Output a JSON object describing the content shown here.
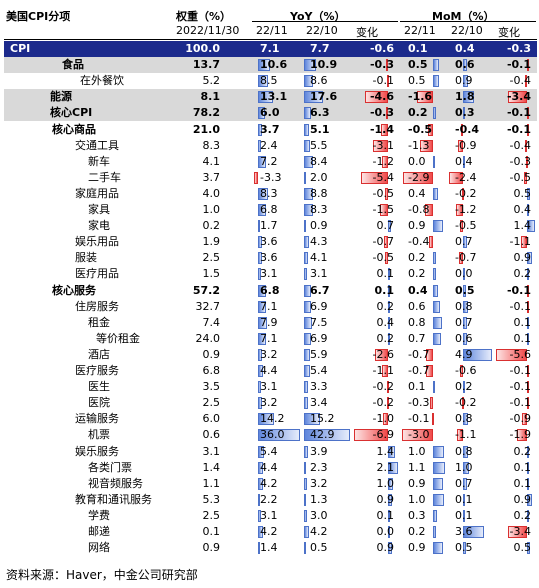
{
  "header": {
    "title": "美国CPI分项",
    "weight_label": "权重（%）",
    "weight_date": "2022/11/30",
    "yoy_label": "YoY（%）",
    "mom_label": "MoM（%）",
    "subcolumns": [
      "22/11",
      "22/10",
      "变化",
      "22/11",
      "22/10",
      "变化"
    ]
  },
  "table": {
    "rows": [
      [
        "CPI",
        "100.0",
        "7.1",
        "7.7",
        "-0.6",
        "0.1",
        "0.4",
        "-0.3"
      ],
      [
        "食品",
        "13.7",
        "10.6",
        "10.9",
        "-0.3",
        "0.5",
        "0.6",
        "-0.1"
      ],
      [
        "在外餐饮",
        "5.2",
        "8.5",
        "8.6",
        "-0.1",
        "0.5",
        "0.9",
        "-0.4"
      ],
      [
        "能源",
        "8.1",
        "13.1",
        "17.6",
        "-4.6",
        "-1.6",
        "1.8",
        "-3.4"
      ],
      [
        "核心CPI",
        "78.2",
        "6.0",
        "6.3",
        "-0.3",
        "0.2",
        "0.3",
        "-0.1"
      ],
      [
        "核心商品",
        "21.0",
        "3.7",
        "5.1",
        "-1.4",
        "-0.5",
        "-0.4",
        "-0.1"
      ],
      [
        "交通工具",
        "8.3",
        "2.4",
        "5.5",
        "-3.1",
        "-1.3",
        "-0.9",
        "-0.4"
      ],
      [
        "新车",
        "4.1",
        "7.2",
        "8.4",
        "-1.2",
        "0.0",
        "0.4",
        "-0.3"
      ],
      [
        "二手车",
        "3.7",
        "-3.3",
        "2.0",
        "-5.4",
        "-2.9",
        "-2.4",
        "-0.5"
      ],
      [
        "家庭用品",
        "4.0",
        "8.3",
        "8.8",
        "-0.5",
        "0.4",
        "-0.2",
        "0.5"
      ],
      [
        "家具",
        "1.0",
        "6.8",
        "8.3",
        "-1.5",
        "-0.8",
        "-1.2",
        "0.4"
      ],
      [
        "家电",
        "0.2",
        "1.7",
        "0.9",
        "0.7",
        "0.9",
        "-0.5",
        "1.4"
      ],
      [
        "娱乐用品",
        "1.9",
        "3.6",
        "4.3",
        "-0.7",
        "-0.4",
        "0.7",
        "-1.1"
      ],
      [
        "服装",
        "2.5",
        "3.6",
        "4.1",
        "-0.5",
        "0.2",
        "-0.7",
        "0.9"
      ],
      [
        "医疗用品",
        "1.5",
        "3.1",
        "3.1",
        "0.1",
        "0.2",
        "0.0",
        "0.2"
      ],
      [
        "核心服务",
        "57.2",
        "6.8",
        "6.7",
        "0.1",
        "0.4",
        "0.5",
        "-0.1"
      ],
      [
        "住房服务",
        "32.7",
        "7.1",
        "6.9",
        "0.2",
        "0.6",
        "0.8",
        "-0.1"
      ],
      [
        "租金",
        "7.4",
        "7.9",
        "7.5",
        "0.4",
        "0.8",
        "0.7",
        "0.1"
      ],
      [
        "等价租金",
        "24.0",
        "7.1",
        "6.9",
        "0.2",
        "0.7",
        "0.6",
        "0.1"
      ],
      [
        "酒店",
        "0.9",
        "3.2",
        "5.9",
        "-2.6",
        "-0.7",
        "4.9",
        "-5.6"
      ],
      [
        "医疗服务",
        "6.8",
        "4.4",
        "5.4",
        "-1.1",
        "-0.7",
        "-0.6",
        "-0.1"
      ],
      [
        "医生",
        "3.5",
        "3.1",
        "3.3",
        "-0.2",
        "0.1",
        "0.2",
        "-0.1"
      ],
      [
        "医院",
        "2.5",
        "3.2",
        "3.4",
        "-0.2",
        "-0.3",
        "-0.2",
        "-0.1"
      ],
      [
        "运输服务",
        "6.0",
        "14.2",
        "15.2",
        "-1.0",
        "-0.1",
        "0.8",
        "-0.9"
      ],
      [
        "机票",
        "0.6",
        "36.0",
        "42.9",
        "-6.9",
        "-3.0",
        "-1.1",
        "-1.9"
      ],
      [
        "娱乐服务",
        "3.1",
        "5.4",
        "3.9",
        "1.4",
        "1.0",
        "0.8",
        "0.2"
      ],
      [
        "各类门票",
        "1.4",
        "4.4",
        "2.3",
        "2.1",
        "1.1",
        "1.0",
        "0.1"
      ],
      [
        "视音频服务",
        "1.1",
        "4.2",
        "3.2",
        "1.0",
        "0.9",
        "0.7",
        "0.1"
      ],
      [
        "教育和通讯服务",
        "5.3",
        "2.2",
        "1.3",
        "0.9",
        "1.0",
        "0.1",
        "0.9"
      ],
      [
        "学费",
        "2.5",
        "3.1",
        "3.0",
        "0.1",
        "0.3",
        "0.1",
        "0.2"
      ],
      [
        "邮递",
        "0.1",
        "4.2",
        "4.2",
        "0.0",
        "0.2",
        "3.6",
        "-3.4"
      ],
      [
        "网络",
        "0.9",
        "1.4",
        "0.5",
        "0.9",
        "0.9",
        "0.5",
        "0.5"
      ]
    ]
  },
  "source": "资料来源：Haver，中金公司研究部"
}
